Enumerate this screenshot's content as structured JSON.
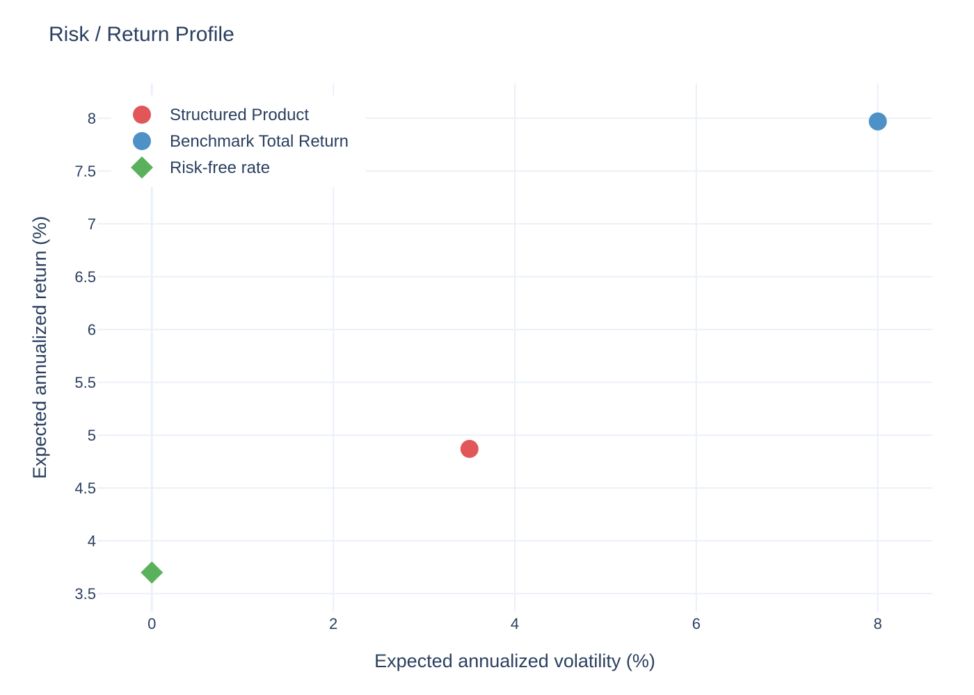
{
  "chart_data": {
    "type": "scatter",
    "title": "Risk / Return Profile",
    "xlabel": "Expected annualized volatility (%)",
    "ylabel": "Expected annualized return (%)",
    "xlim": [
      -0.6,
      8.6
    ],
    "ylim": [
      3.33,
      8.33
    ],
    "x_ticks": [
      0,
      2,
      4,
      6,
      8
    ],
    "x_tick_labels": [
      "0",
      "2",
      "4",
      "6",
      "8"
    ],
    "y_ticks": [
      3.5,
      4,
      4.5,
      5,
      5.5,
      6,
      6.5,
      7,
      7.5,
      8
    ],
    "y_tick_labels": [
      "3.5",
      "4",
      "4.5",
      "5",
      "5.5",
      "6",
      "6.5",
      "7",
      "7.5",
      "8"
    ],
    "grid": true,
    "legend_position": "top-left",
    "series": [
      {
        "name": "Structured Product",
        "marker": "circle",
        "color": "#e15759",
        "points": [
          {
            "x": 3.5,
            "y": 4.87
          }
        ]
      },
      {
        "name": "Benchmark Total Return",
        "marker": "circle",
        "color": "#4e91c6",
        "points": [
          {
            "x": 8.0,
            "y": 7.97
          }
        ]
      },
      {
        "name": "Risk-free rate",
        "marker": "diamond",
        "color": "#59b25b",
        "points": [
          {
            "x": 0.0,
            "y": 3.7
          }
        ]
      }
    ]
  }
}
